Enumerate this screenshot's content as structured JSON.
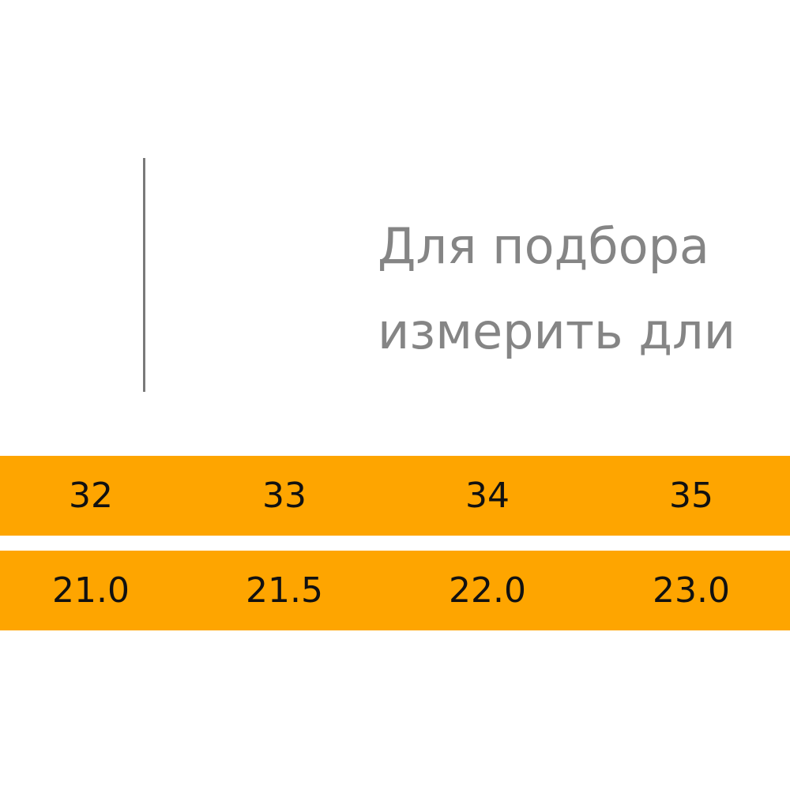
{
  "intro": {
    "lines": [
      "Для подбора",
      "измерить дли"
    ]
  },
  "table": {
    "rows": [
      [
        "32",
        "33",
        "34",
        "35"
      ],
      [
        "21.0",
        "21.5",
        "22.0",
        "23.0"
      ]
    ]
  }
}
